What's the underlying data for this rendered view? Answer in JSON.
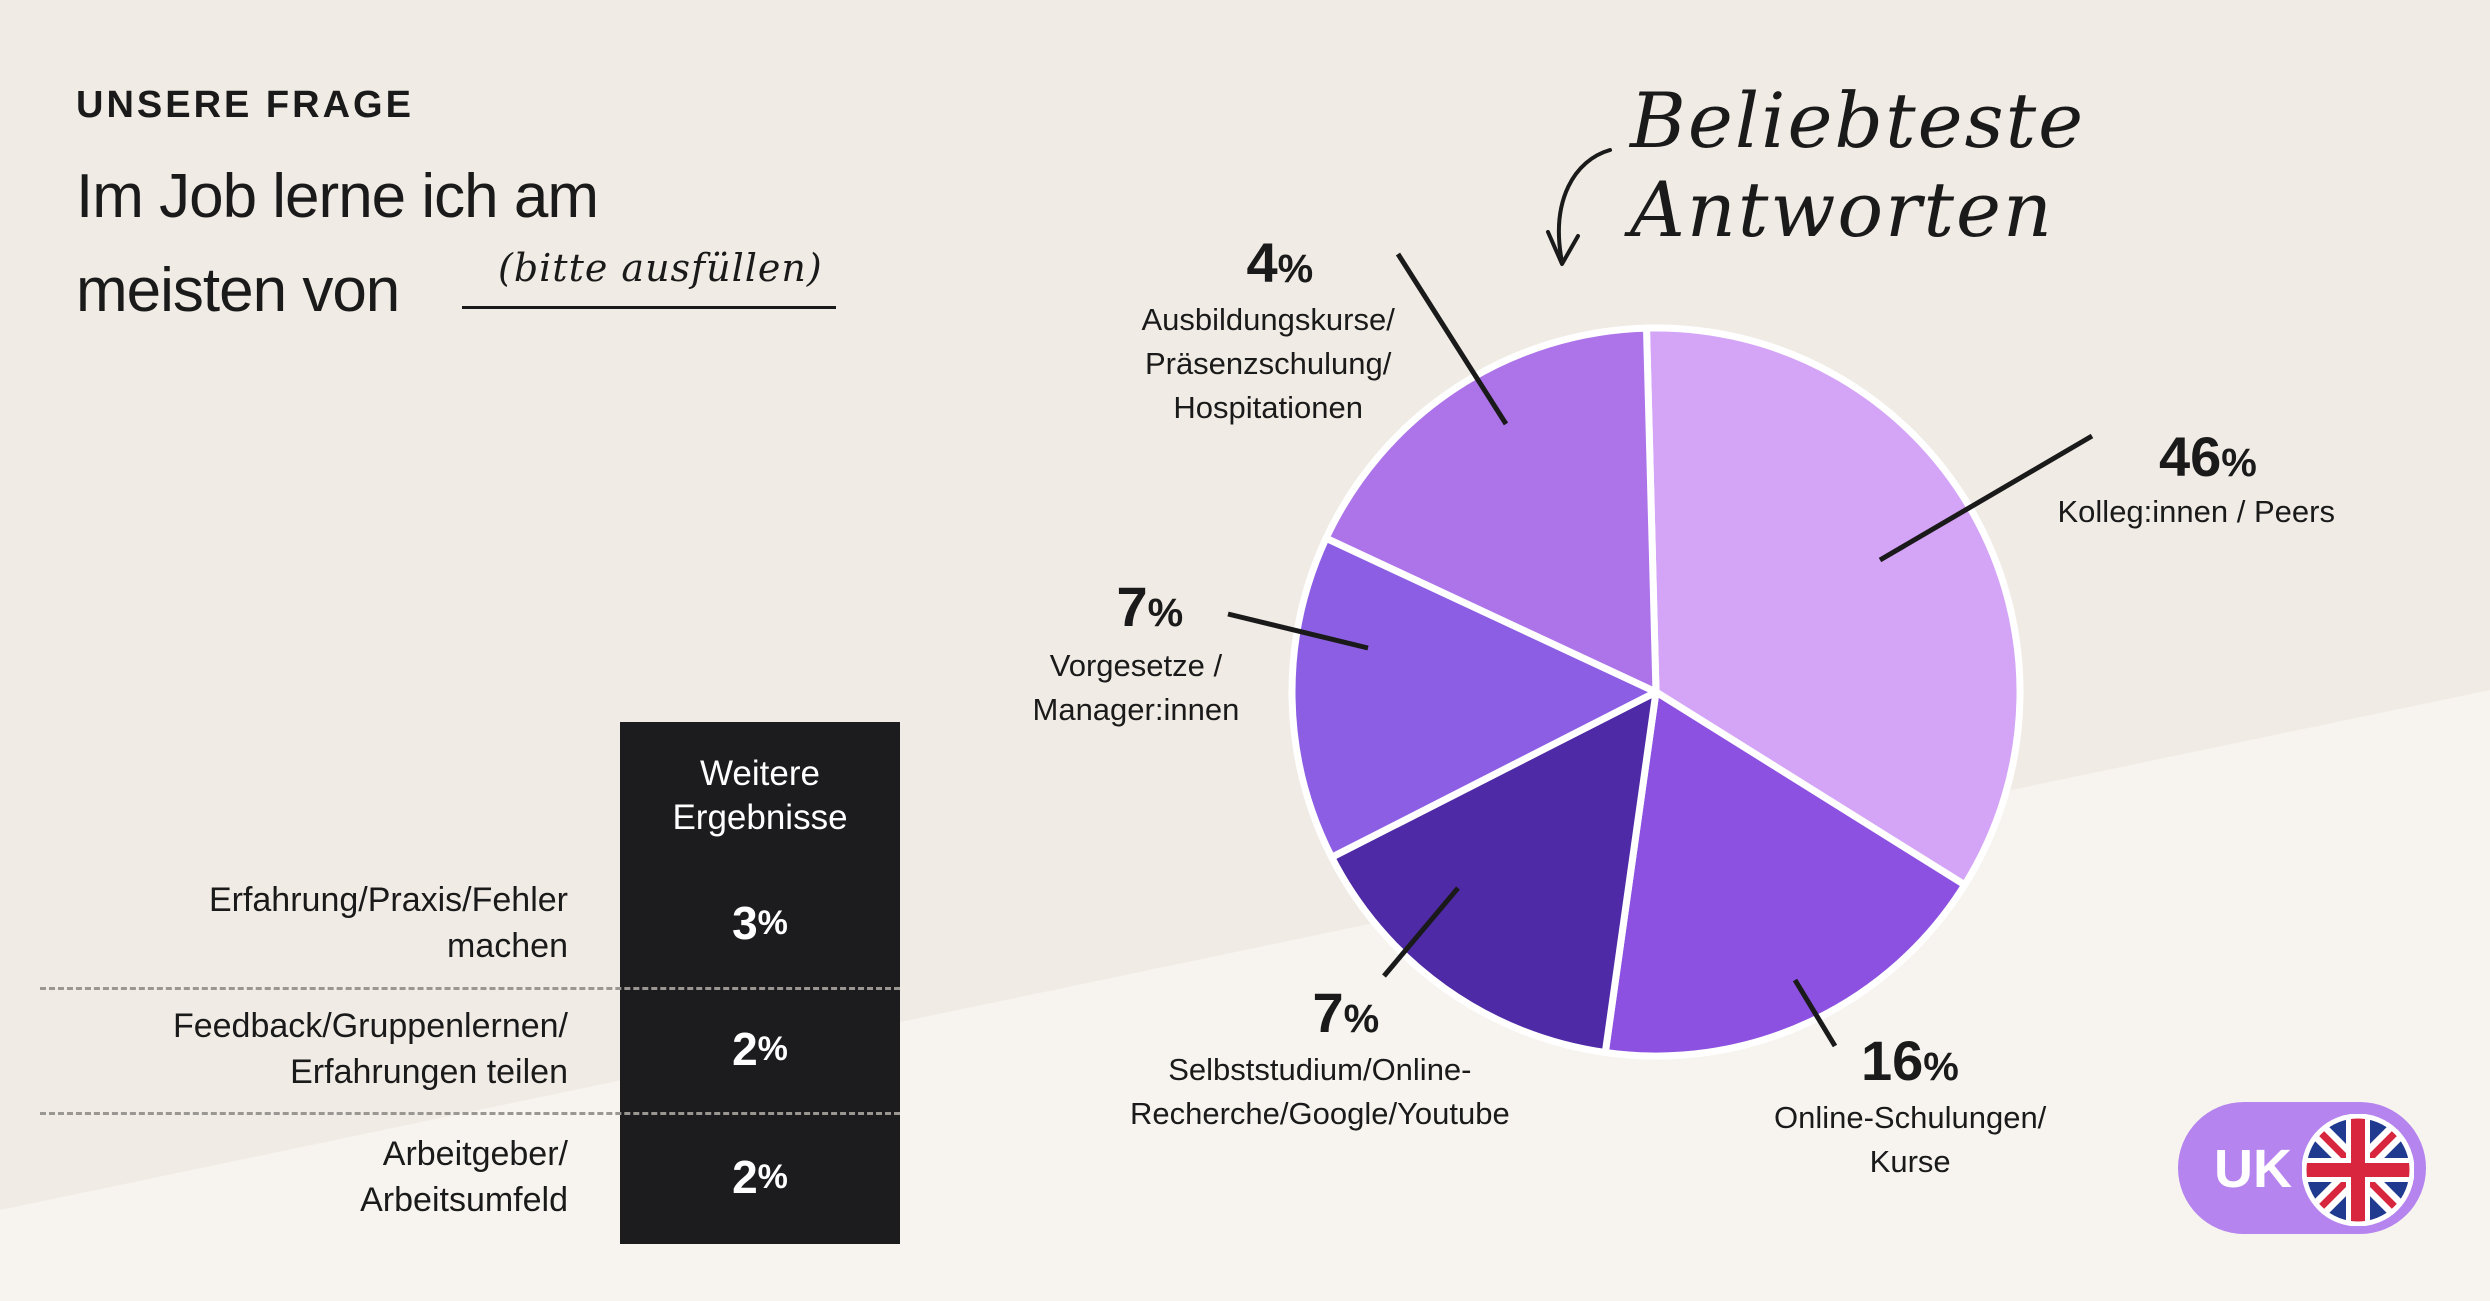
{
  "header": {
    "kicker": "UNSERE FRAGE",
    "question": "Im Job lerne ich am meisten von",
    "fill_hint": "(bitte ausfüllen)"
  },
  "chart_annotation": "Beliebteste Antworten",
  "chart_data": {
    "type": "pie",
    "slices": [
      {
        "label": "Kolleg:innen / Peers",
        "value": 46,
        "display": "46",
        "color": "#d4a5f7"
      },
      {
        "label": "Online-Schulungen/\nKurse",
        "value": 16,
        "display": "16",
        "color": "#8c51e0"
      },
      {
        "label": "Selbststudium/Online-\nRecherche/Google/Youtube",
        "value": 7,
        "display": "7",
        "color": "#4f2aa6"
      },
      {
        "label": "Vorgesetze /\nManager:innen",
        "value": 7,
        "display": "7",
        "color": "#8c5ee4"
      },
      {
        "label": "Ausbildungskurse/\nPräsenzschulung/\nHospitationen",
        "value": 4,
        "display": "4",
        "color": "#ad74ea"
      }
    ],
    "unit": "%"
  },
  "more_results": {
    "header": "Weitere\nErgebnisse",
    "rows": [
      {
        "label": "Erfahrung/Praxis/Fehler\nmachen",
        "value": "3",
        "unit": "%"
      },
      {
        "label": "Feedback/Gruppenlernen/\nErfahrungen teilen",
        "value": "2",
        "unit": "%"
      },
      {
        "label": "Arbeitgeber/\nArbeitsumfeld",
        "value": "2",
        "unit": "%"
      }
    ]
  },
  "country_badge": {
    "label": "UK",
    "flag_icon": "uk-flag-icon",
    "color": "#b584ee"
  }
}
